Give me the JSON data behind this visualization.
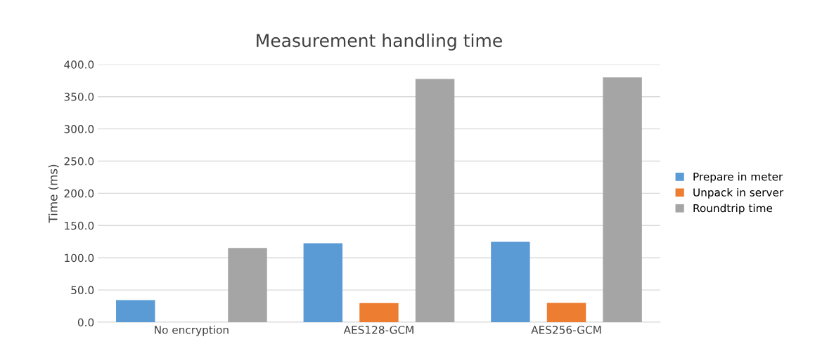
{
  "chart_data": {
    "type": "bar",
    "title": "Measurement handling time",
    "ylabel": "Time (ms)",
    "categories": [
      "No encryption",
      "AES128-GCM",
      "AES256-GCM"
    ],
    "series": [
      {
        "name": "Prepare in meter",
        "color": "#5b9bd5",
        "values": [
          34.3,
          122.5,
          124.7
        ]
      },
      {
        "name": "Unpack in server",
        "color": "#ed7d31",
        "values": [
          null,
          29.8,
          30
        ]
      },
      {
        "name": "Roundtrip time",
        "color": "#a5a5a5",
        "values": [
          115.2,
          377.5,
          379.8
        ]
      }
    ],
    "ylim": [
      0,
      400
    ],
    "yticks": [
      {
        "value": 0,
        "label": "0.0"
      },
      {
        "value": 50,
        "label": "50.0"
      },
      {
        "value": 100,
        "label": "100.0"
      },
      {
        "value": 150,
        "label": "150.0"
      },
      {
        "value": 200,
        "label": "200.0"
      },
      {
        "value": 250,
        "label": "250.0"
      },
      {
        "value": 300,
        "label": "300.0"
      },
      {
        "value": 350,
        "label": "350.0"
      },
      {
        "value": 400,
        "label": "400.0"
      }
    ],
    "grid": "y",
    "legend": "right"
  }
}
